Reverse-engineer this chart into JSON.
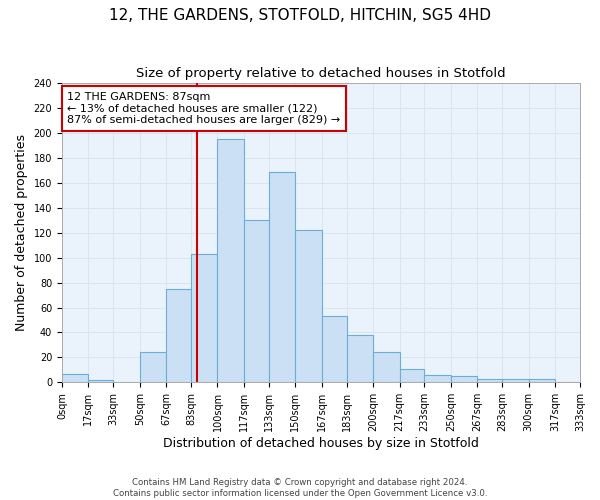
{
  "title": "12, THE GARDENS, STOTFOLD, HITCHIN, SG5 4HD",
  "subtitle": "Size of property relative to detached houses in Stotfold",
  "xlabel": "Distribution of detached houses by size in Stotfold",
  "ylabel": "Number of detached properties",
  "bin_edges": [
    0,
    17,
    33,
    50,
    67,
    83,
    100,
    117,
    133,
    150,
    167,
    183,
    200,
    217,
    233,
    250,
    267,
    283,
    300,
    317,
    333
  ],
  "bar_heights": [
    7,
    2,
    0,
    24,
    75,
    103,
    195,
    130,
    169,
    122,
    53,
    38,
    24,
    11,
    6,
    5,
    3,
    3,
    3,
    0
  ],
  "bar_color": "#cce0f5",
  "bar_edge_color": "#6aaed6",
  "property_value": 87,
  "vline_color": "#cc0000",
  "annotation_text": "12 THE GARDENS: 87sqm\n← 13% of detached houses are smaller (122)\n87% of semi-detached houses are larger (829) →",
  "annotation_box_color": "white",
  "annotation_box_edge": "#cc0000",
  "ylim": [
    0,
    240
  ],
  "yticks": [
    0,
    20,
    40,
    60,
    80,
    100,
    120,
    140,
    160,
    180,
    200,
    220,
    240
  ],
  "footer_line1": "Contains HM Land Registry data © Crown copyright and database right 2024.",
  "footer_line2": "Contains public sector information licensed under the Open Government Licence v3.0.",
  "title_fontsize": 11,
  "subtitle_fontsize": 9.5,
  "tick_label_fontsize": 7,
  "axis_label_fontsize": 9,
  "annotation_fontsize": 8,
  "background_color": "#ffffff",
  "grid_color": "#d8e4ef",
  "plot_bg_color": "#eaf2fb"
}
